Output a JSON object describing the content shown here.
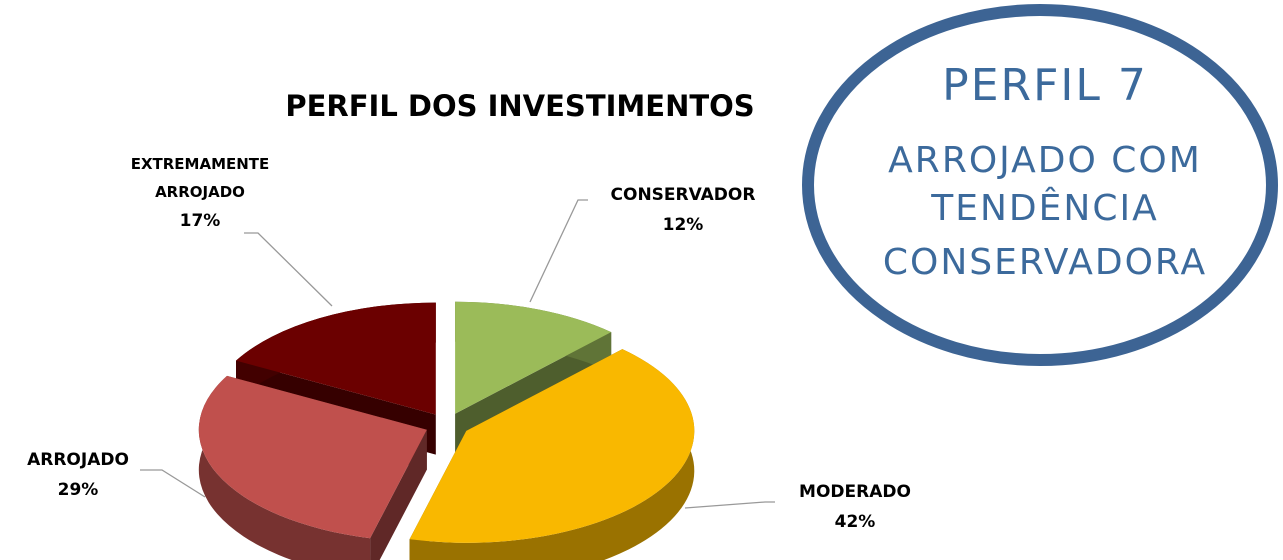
{
  "chart_data": {
    "type": "pie",
    "title": "PERFIL DOS INVESTIMENTOS",
    "categories": [
      "CONSERVADOR",
      "MODERADO",
      "ARROJADO",
      "EXTREMAMENTE ARROJADO"
    ],
    "values": [
      12,
      42,
      29,
      17
    ],
    "value_labels": [
      "12%",
      "42%",
      "29%",
      "17%"
    ],
    "colors": [
      "#9bbb59",
      "#f9b800",
      "#c0504d",
      "#6b0000"
    ],
    "annotations": [
      "PERFIL 7",
      "ARROJADO COM",
      "TENDÊNCIA",
      "CONSERVADORA"
    ]
  }
}
